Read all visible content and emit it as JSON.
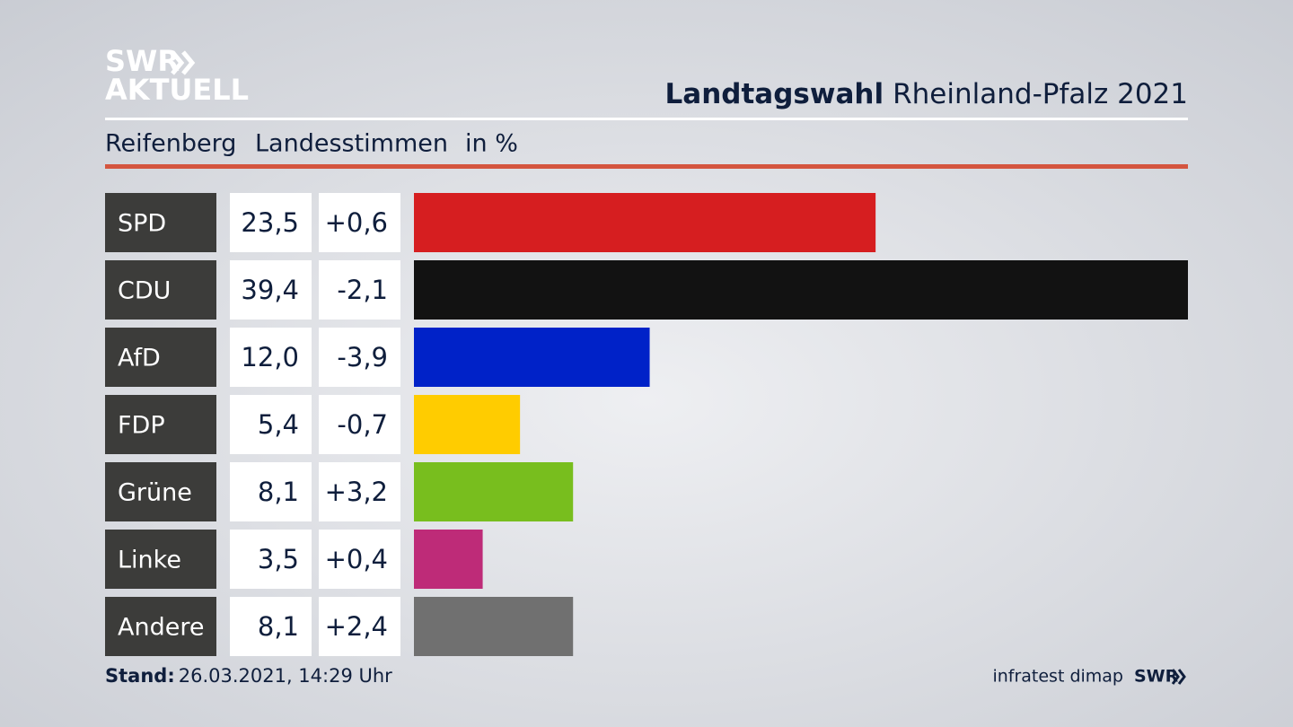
{
  "chart_data": {
    "type": "bar",
    "logo": [
      "SWR",
      "AKTUELL"
    ],
    "title_bold": "Landtagswahl",
    "title": "Rheinland-Pfalz 2021",
    "subtitle": [
      "Reifenberg",
      "Landesstimmen",
      "in %"
    ],
    "categories": [
      "SPD",
      "CDU",
      "AfD",
      "FDP",
      "Grüne",
      "Linke",
      "Andere"
    ],
    "values": [
      23.5,
      39.4,
      12.0,
      5.4,
      8.1,
      3.5,
      8.1
    ],
    "value_labels": [
      "23,5",
      "39,4",
      "12,0",
      "5,4",
      "8,1",
      "3,5",
      "8,1"
    ],
    "changes": [
      0.6,
      -2.1,
      -3.9,
      -0.7,
      3.2,
      0.4,
      2.4
    ],
    "change_labels": [
      "+0,6",
      "-2,1",
      "-3,9",
      "-0,7",
      "+3,2",
      "+0,4",
      "+2,4"
    ],
    "colors": [
      "#d61e20",
      "#121212",
      "#0022c8",
      "#ffcc00",
      "#78be1e",
      "#be2b78",
      "#707070"
    ],
    "footer_label": "Stand:",
    "footer_date": "26.03.2021, 14:29 Uhr",
    "source": "infratest dimap",
    "source_logo": "SWR"
  }
}
